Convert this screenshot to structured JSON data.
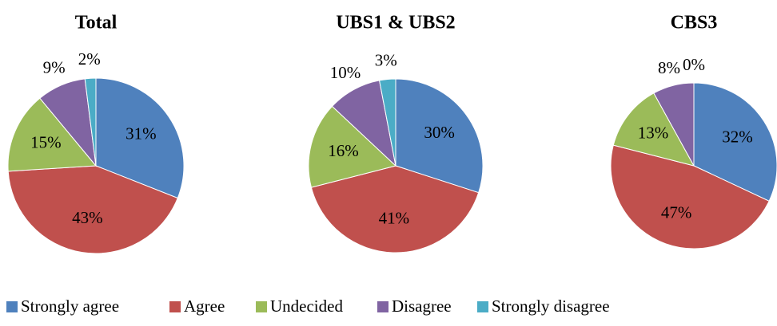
{
  "chart_data": [
    {
      "type": "pie",
      "title": "Total",
      "categories": [
        "Strongly agree",
        "Agree",
        "Undecided",
        "Disagree",
        "Strongly disagree"
      ],
      "values": [
        31,
        43,
        15,
        9,
        2
      ],
      "value_labels": [
        "31%",
        "43%",
        "15%",
        "9%",
        "2%"
      ],
      "colors": [
        "#4f81bd",
        "#c0504d",
        "#9bbb59",
        "#8064a2",
        "#4bacc6"
      ]
    },
    {
      "type": "pie",
      "title": "UBS1 & UBS2",
      "categories": [
        "Strongly agree",
        "Agree",
        "Undecided",
        "Disagree",
        "Strongly disagree"
      ],
      "values": [
        30,
        41,
        16,
        10,
        3
      ],
      "value_labels": [
        "30%",
        "41%",
        "16%",
        "10%",
        "3%"
      ],
      "colors": [
        "#4f81bd",
        "#c0504d",
        "#9bbb59",
        "#8064a2",
        "#4bacc6"
      ]
    },
    {
      "type": "pie",
      "title": "CBS3",
      "categories": [
        "Strongly agree",
        "Agree",
        "Undecided",
        "Disagree",
        "Strongly disagree"
      ],
      "values": [
        32,
        47,
        13,
        8,
        0
      ],
      "value_labels": [
        "32%",
        "47%",
        "13%",
        "8%",
        "0%"
      ],
      "colors": [
        "#4f81bd",
        "#c0504d",
        "#9bbb59",
        "#8064a2",
        "#4bacc6"
      ]
    }
  ]
}
